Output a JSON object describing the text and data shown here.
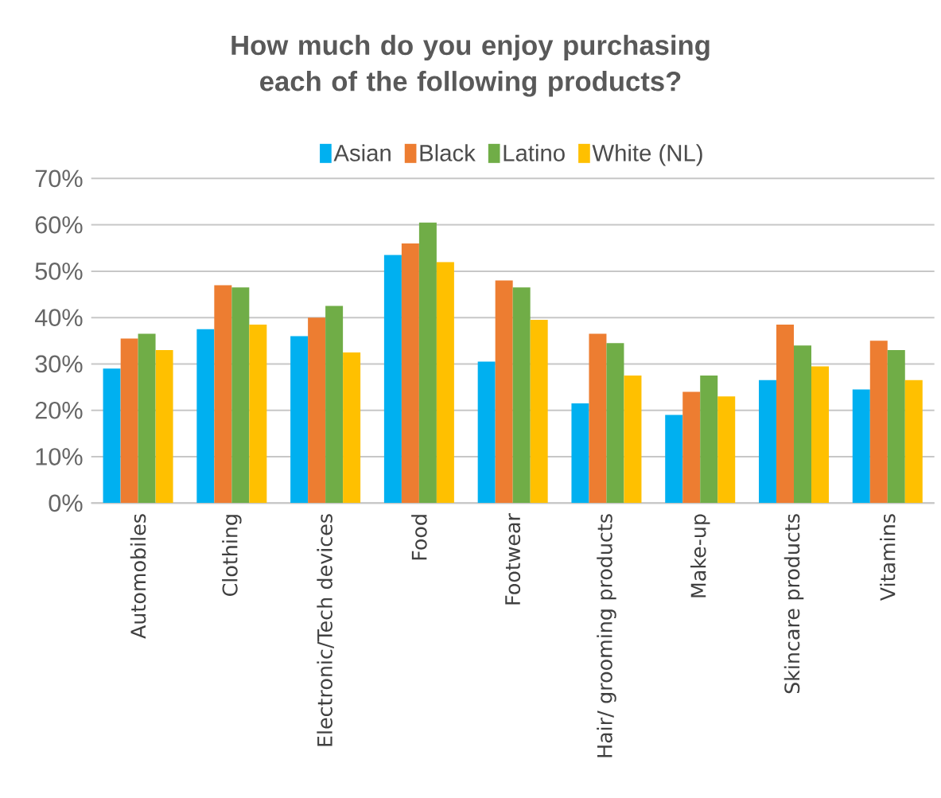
{
  "chart_data": {
    "type": "bar",
    "title": "How much do you enjoy purchasing each of the following products?",
    "categories": [
      "Automobiles",
      "Clothing",
      "Electronic/Tech devices",
      "Food",
      "Footwear",
      "Hair/ grooming products",
      "Make-up",
      "Skincare products",
      "Vitamins"
    ],
    "series": [
      {
        "name": "Asian",
        "color": "#00b0f0",
        "values": [
          29,
          37.5,
          36,
          53.5,
          30.5,
          21.5,
          19,
          26.5,
          24.5
        ]
      },
      {
        "name": "Black",
        "color": "#ed7d31",
        "values": [
          35.5,
          47,
          40,
          56,
          48,
          36.5,
          24,
          38.5,
          35
        ]
      },
      {
        "name": "Latino",
        "color": "#70ad47",
        "values": [
          36.5,
          46.5,
          42.5,
          60.5,
          46.5,
          34.5,
          27.5,
          34,
          33
        ]
      },
      {
        "name": "White (NL)",
        "color": "#ffc000",
        "values": [
          33,
          38.5,
          32.5,
          52,
          39.5,
          27.5,
          23,
          29.5,
          26.5
        ]
      }
    ],
    "ylim": [
      0,
      70
    ],
    "yticks": [
      {
        "value": 0,
        "label": "0%"
      },
      {
        "value": 10,
        "label": "10%"
      },
      {
        "value": 20,
        "label": "20%"
      },
      {
        "value": 30,
        "label": "30%"
      },
      {
        "value": 40,
        "label": "40%"
      },
      {
        "value": 50,
        "label": "50%"
      },
      {
        "value": 60,
        "label": "60%"
      },
      {
        "value": 70,
        "label": "70%"
      }
    ],
    "grid": "y",
    "legend": "top"
  }
}
